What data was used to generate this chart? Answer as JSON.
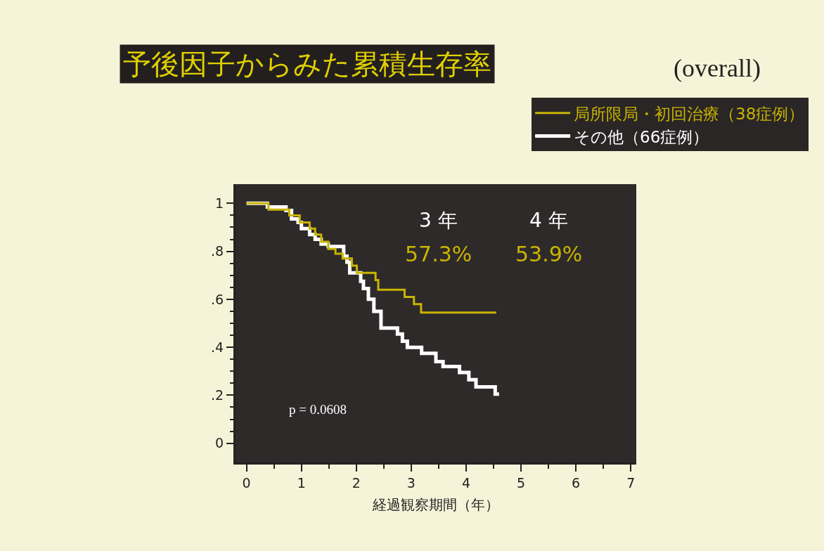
{
  "chart_data": {
    "type": "step",
    "title": "予後因子からみた累積生存率",
    "subtitle": "(overall)",
    "xlabel": "経過観察期間（年）",
    "series": [
      {
        "name": "局所限局・初回治療（38症例）",
        "color": "#c8b400",
        "x": [
          0,
          0.4,
          0.78,
          0.97,
          1.15,
          1.25,
          1.36,
          1.49,
          1.62,
          1.75,
          1.92,
          2.01,
          2.35,
          2.4,
          2.88,
          3.05,
          3.18,
          4.55
        ],
        "values": [
          1.0,
          0.974,
          0.95,
          0.92,
          0.895,
          0.87,
          0.84,
          0.81,
          0.79,
          0.77,
          0.74,
          0.71,
          0.68,
          0.64,
          0.61,
          0.58,
          0.545,
          0.545
        ]
      },
      {
        "name": "その他（66症例）",
        "color": "#ffffff",
        "x": [
          0,
          0.38,
          0.72,
          0.82,
          0.94,
          1.0,
          1.15,
          1.25,
          1.36,
          1.49,
          1.77,
          1.83,
          1.88,
          2.08,
          2.13,
          2.22,
          2.32,
          2.45,
          2.75,
          2.84,
          2.93,
          3.19,
          3.45,
          3.58,
          3.88,
          4.05,
          4.18,
          4.53,
          4.6
        ],
        "values": [
          1.0,
          0.985,
          0.97,
          0.935,
          0.92,
          0.895,
          0.87,
          0.85,
          0.83,
          0.82,
          0.78,
          0.755,
          0.71,
          0.675,
          0.645,
          0.6,
          0.55,
          0.48,
          0.455,
          0.425,
          0.4,
          0.375,
          0.34,
          0.32,
          0.295,
          0.265,
          0.235,
          0.205,
          0.205
        ]
      }
    ],
    "xlim": [
      -0.2,
      7.1
    ],
    "xticks": [
      0,
      1,
      2,
      3,
      4,
      5,
      6,
      7
    ],
    "ylim": [
      -0.08,
      1.08
    ],
    "yticks": [
      {
        "value": 0,
        "label": "0"
      },
      {
        "value": 0.2,
        "label": ".2"
      },
      {
        "value": 0.4,
        "label": ".4"
      },
      {
        "value": 0.6,
        "label": ".6"
      },
      {
        "value": 0.8,
        "label": ".8"
      },
      {
        "value": 1,
        "label": "1"
      }
    ],
    "annotations": [
      "3 年",
      "4 年",
      "57.3%",
      "53.9%",
      "p = 0.0608"
    ],
    "grid": false,
    "legend": "top right",
    "marker": "none",
    "line_style": "solid"
  }
}
